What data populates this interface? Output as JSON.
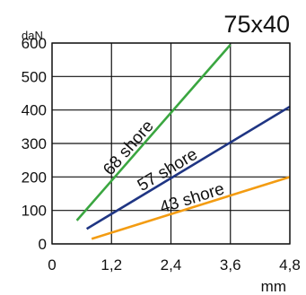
{
  "chart_data": {
    "type": "line",
    "title": "75x40",
    "ylabel": "daN",
    "xlabel": "mm",
    "xlim": [
      0,
      4.8
    ],
    "ylim": [
      0,
      600
    ],
    "x_ticks": [
      0,
      1.2,
      2.4,
      3.6,
      4.8
    ],
    "x_tick_labels": [
      "0",
      "1,2",
      "2,4",
      "3,6",
      "4,8"
    ],
    "y_ticks": [
      0,
      100,
      200,
      300,
      400,
      500,
      600
    ],
    "y_tick_labels": [
      "0",
      "100",
      "200",
      "300",
      "400",
      "500",
      "600"
    ],
    "grid": true,
    "series": [
      {
        "name": "68 shore",
        "color": "#3aa640",
        "x": [
          0.5,
          3.6
        ],
        "y": [
          70,
          595
        ]
      },
      {
        "name": "57 shore",
        "color": "#1f3583",
        "x": [
          0.7,
          4.8
        ],
        "y": [
          45,
          410
        ]
      },
      {
        "name": "43 shore",
        "color": "#f39c12",
        "x": [
          0.8,
          4.8
        ],
        "y": [
          15,
          200
        ]
      }
    ]
  }
}
